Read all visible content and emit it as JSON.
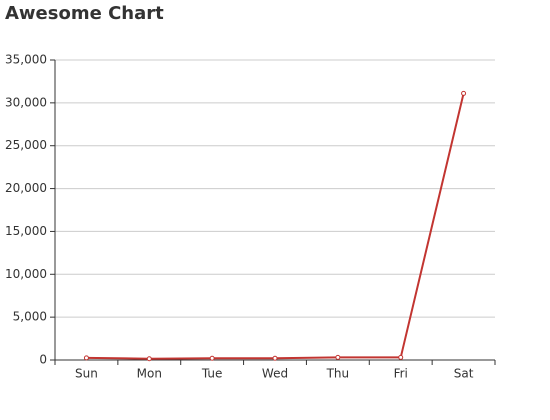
{
  "chart_data": {
    "type": "line",
    "title": "Awesome Chart",
    "categories": [
      "Sun",
      "Mon",
      "Tue",
      "Wed",
      "Thu",
      "Fri",
      "Sat"
    ],
    "values": [
      250,
      150,
      200,
      200,
      300,
      300,
      31100
    ],
    "color": "#c23531",
    "ylim": [
      0,
      35000
    ],
    "yticks": [
      0,
      {
        "value": 5000,
        "label": "5,000"
      },
      {
        "value": 10000,
        "label": "10,000"
      },
      {
        "value": 15000,
        "label": "15,000"
      },
      {
        "value": 20000,
        "label": "20,000"
      },
      {
        "value": 25000,
        "label": "25,000"
      },
      {
        "value": 30000,
        "label": "30,000"
      },
      {
        "value": 35000,
        "label": "35,000"
      }
    ],
    "grid": true
  }
}
